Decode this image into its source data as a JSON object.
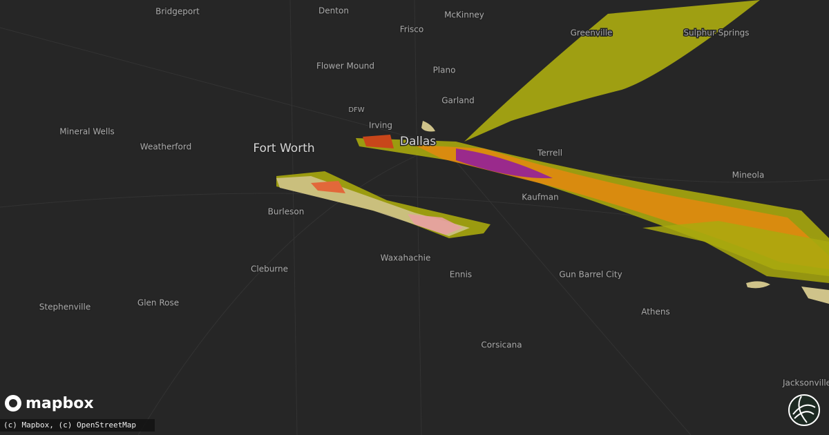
{
  "map": {
    "cities": [
      "Bridgeport",
      "Denton",
      "McKinney",
      "Frisco",
      "Greenville",
      "Sulphur Springs",
      "Flower Mound",
      "Plano",
      "Garland",
      "DFW",
      "Irving",
      "Dallas",
      "Fort Worth",
      "Mineral Wells",
      "Weatherford",
      "Terrell",
      "Mineola",
      "Burleson",
      "Kaufman",
      "Waxahachie",
      "Cleburne",
      "Ennis",
      "Gun Barrel City",
      "Stephenville",
      "Glen Rose",
      "Athens",
      "Corsicana",
      "Jacksonville"
    ]
  },
  "footer": {
    "logo": "mapbox",
    "attribution": "(c) Mapbox, (c) OpenStreetMap"
  }
}
